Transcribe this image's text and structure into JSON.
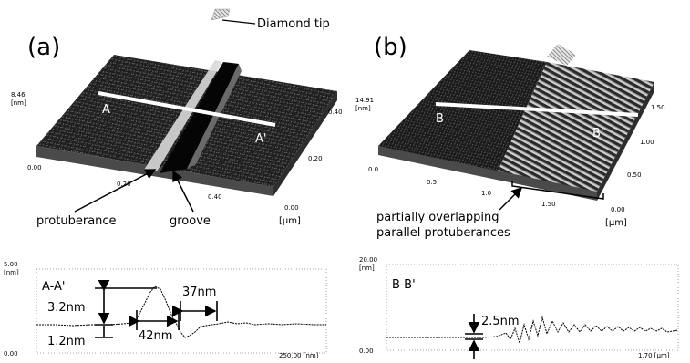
{
  "figure": {
    "panel_a": {
      "label": "(a)",
      "tip_label": "Diamond tip",
      "annotation_protuberance": "protuberance",
      "annotation_groove": "groove",
      "line_labels": {
        "start": "A",
        "end": "A'"
      },
      "z_label": "[nm]",
      "z_max_tick": "8.46",
      "axis_unit": "[µm]",
      "x_ticks": [
        "0.00",
        "0.20",
        "0.40"
      ],
      "y_ticks": [
        "0.00",
        "0.20",
        "0.40"
      ]
    },
    "panel_b": {
      "label": "(b)",
      "annotation": [
        "partially overlapping",
        "parallel protuberances"
      ],
      "line_labels": {
        "start": "B",
        "end": "B'"
      },
      "z_label": "[nm]",
      "z_max_tick": "14.91",
      "axis_unit": "[µm]",
      "x_ticks": [
        "0.0",
        "0.5",
        "1.0",
        "1.50"
      ],
      "y_ticks": [
        "0.00",
        "0.50",
        "1.00",
        "1.50"
      ]
    },
    "profile_a": {
      "title": "A-A'",
      "y_unit": "[nm]",
      "y_top_tick": "5.00",
      "y_bottom_tick": "0.00",
      "x_end_tick": "250.00 [nm]",
      "measurements": {
        "height": "3.2nm",
        "depth": "1.2nm",
        "width_left": "42nm",
        "width_right": "37nm"
      }
    },
    "profile_b": {
      "title": "B-B'",
      "y_unit": "[nm]",
      "y_top_tick": "20.00",
      "y_bottom_tick": "0.00",
      "x_end_tick": "1.70 [µm]",
      "measurements": {
        "spacing": "2.5nm"
      }
    }
  }
}
